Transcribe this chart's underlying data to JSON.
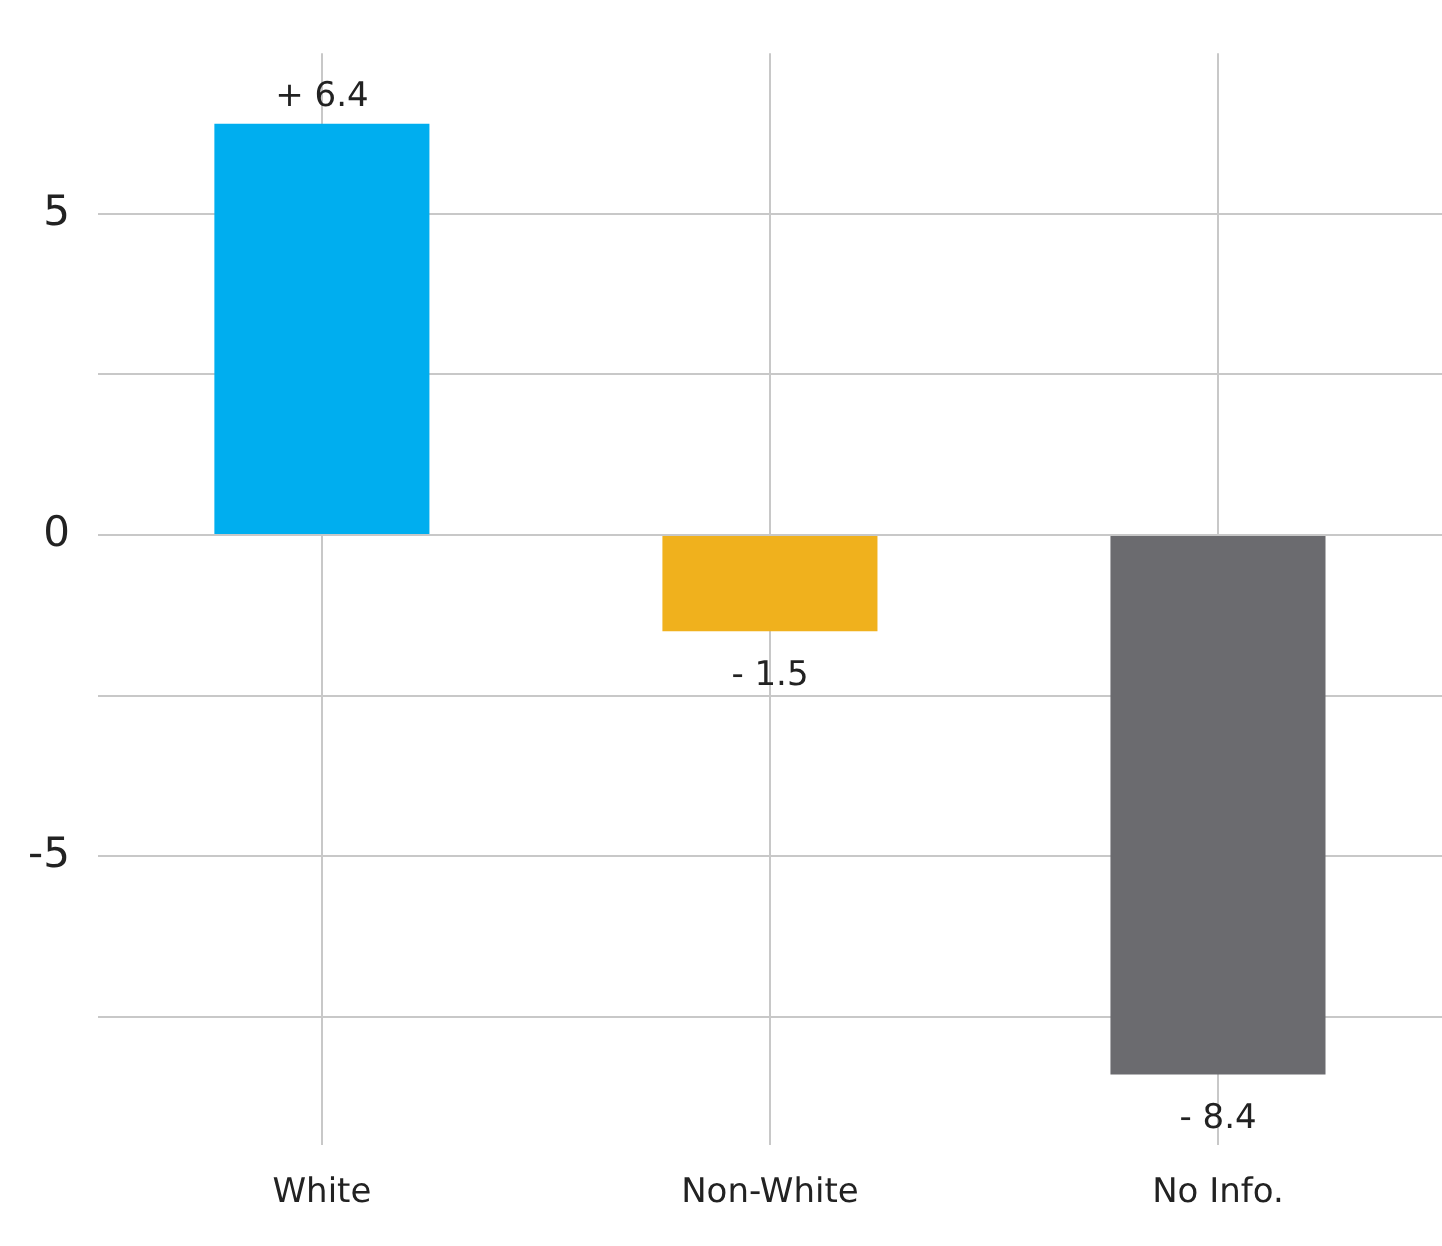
{
  "chart_data": {
    "type": "bar",
    "categories": [
      "White",
      "Non-White",
      "No Info."
    ],
    "values": [
      6.4,
      -1.5,
      -8.4
    ],
    "colors": [
      "#00aeef",
      "#f0b11d",
      "#6b6b6f"
    ],
    "value_labels": [
      "+ 6.4",
      "- 1.5",
      "- 8.4"
    ],
    "ylim": [
      -9.5,
      7.5
    ],
    "yticks": [
      {
        "value": -7.5,
        "label": null
      },
      -5,
      {
        "value": -2.5,
        "label": null
      },
      0,
      {
        "value": 2.5,
        "label": null
      },
      5
    ],
    "grid": true,
    "legend": false
  }
}
